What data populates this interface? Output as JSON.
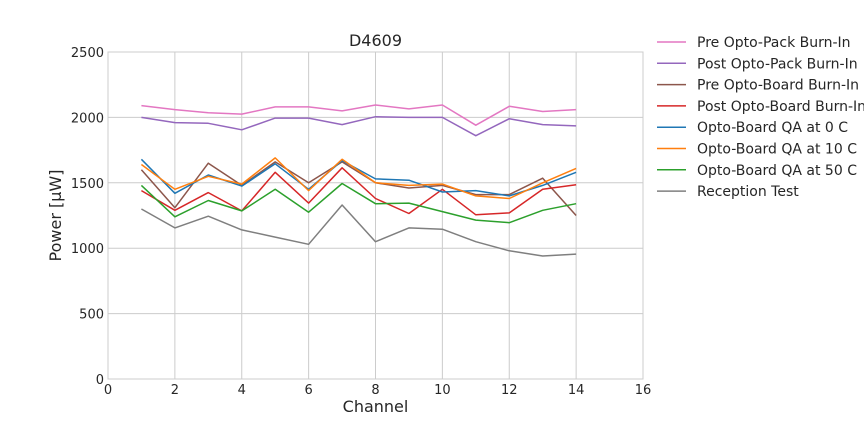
{
  "chart_data": {
    "type": "line",
    "title": "D4609",
    "xlabel": "Channel",
    "ylabel": "Power [μW]",
    "xlim": [
      0,
      16
    ],
    "ylim": [
      0,
      2500
    ],
    "xticks": [
      0,
      2,
      4,
      6,
      8,
      10,
      12,
      14,
      16
    ],
    "yticks": [
      0,
      500,
      1000,
      1500,
      2000,
      2500
    ],
    "grid": true,
    "legend_position": "outside-right",
    "x": [
      1,
      2,
      3,
      4,
      5,
      6,
      7,
      8,
      9,
      10,
      11,
      12,
      13,
      14
    ],
    "series": [
      {
        "name": "Pre Opto-Pack Burn-In",
        "color": "#e377c2",
        "values": [
          2090,
          2060,
          2035,
          2025,
          2080,
          2080,
          2050,
          2095,
          2065,
          2095,
          1940,
          2085,
          2045,
          2060
        ]
      },
      {
        "name": "Post Opto-Pack Burn-In",
        "color": "#9467bd",
        "values": [
          2000,
          1960,
          1955,
          1905,
          1995,
          1995,
          1945,
          2005,
          2000,
          2000,
          1860,
          1990,
          1945,
          1935
        ]
      },
      {
        "name": "Pre Opto-Board Burn-In",
        "color": "#8c564b",
        "values": [
          1600,
          1310,
          1650,
          1480,
          1660,
          1500,
          1660,
          1500,
          1460,
          1480,
          1410,
          1410,
          1535,
          1250
        ]
      },
      {
        "name": "Post Opto-Board Burn-In",
        "color": "#d62728",
        "values": [
          1440,
          1290,
          1425,
          1285,
          1580,
          1345,
          1615,
          1380,
          1265,
          1450,
          1255,
          1270,
          1450,
          1485
        ]
      },
      {
        "name": "Opto-Board QA at 0 C",
        "color": "#1f77b4",
        "values": [
          1680,
          1420,
          1560,
          1475,
          1645,
          1450,
          1670,
          1530,
          1520,
          1430,
          1440,
          1400,
          1480,
          1580
        ]
      },
      {
        "name": "Opto-Board QA at 10 C",
        "color": "#ff7f0e",
        "values": [
          1640,
          1450,
          1550,
          1490,
          1690,
          1440,
          1680,
          1500,
          1480,
          1490,
          1400,
          1380,
          1500,
          1610
        ]
      },
      {
        "name": "Opto-Board QA at 50 C",
        "color": "#2ca02c",
        "values": [
          1480,
          1240,
          1365,
          1285,
          1450,
          1275,
          1495,
          1340,
          1345,
          1280,
          1215,
          1195,
          1290,
          1340
        ]
      },
      {
        "name": "Reception Test",
        "color": "#7f7f7f",
        "values": [
          1300,
          1155,
          1245,
          1140,
          1085,
          1030,
          1330,
          1050,
          1155,
          1145,
          1050,
          980,
          940,
          955
        ]
      }
    ]
  }
}
